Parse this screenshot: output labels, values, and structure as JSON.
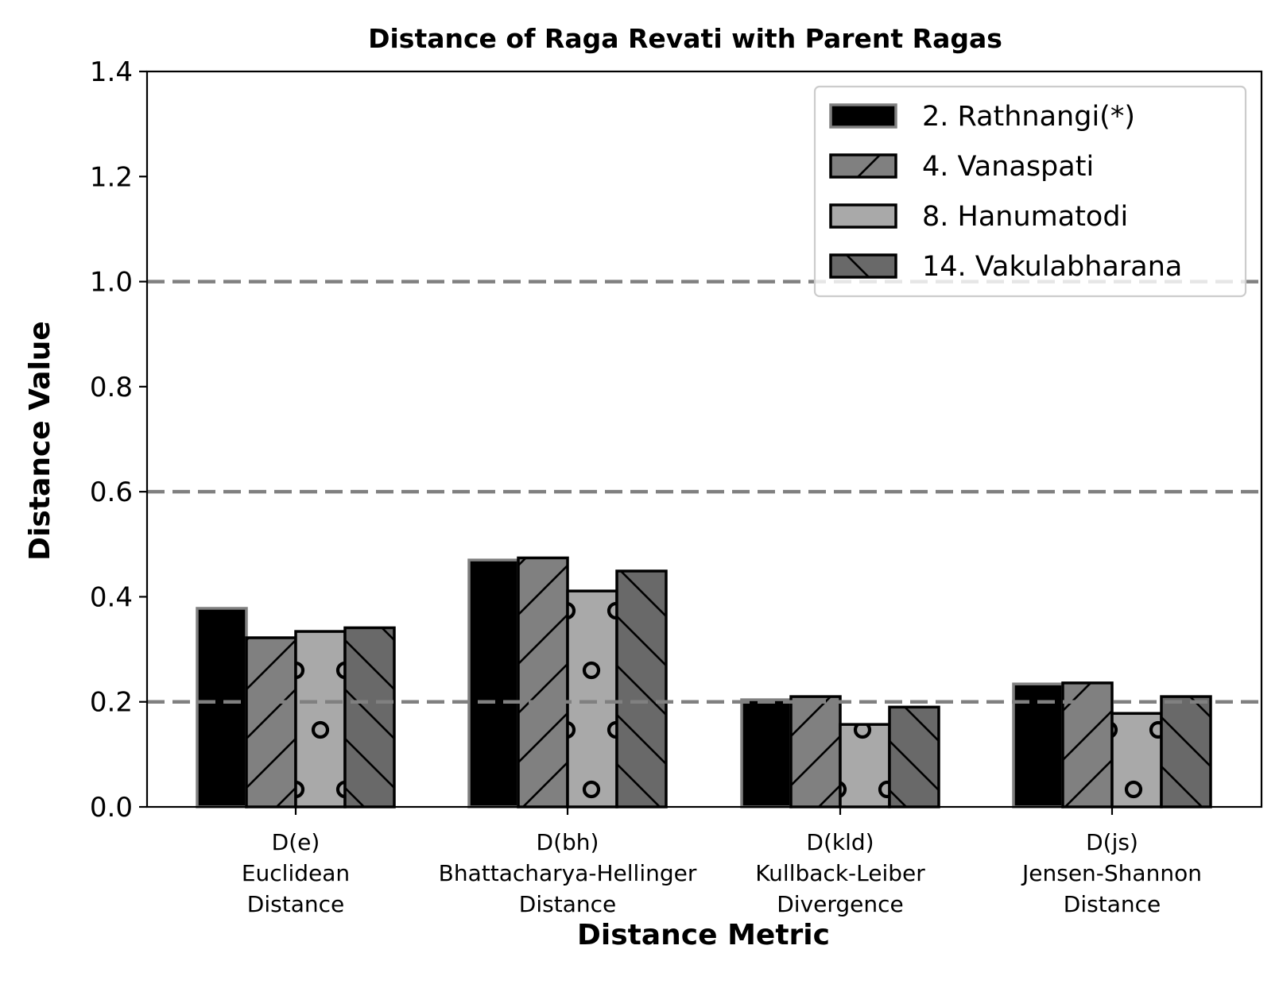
{
  "chart_data": {
    "type": "bar",
    "title": "Distance of Raga Revati with Parent Ragas",
    "xlabel": "Distance Metric",
    "ylabel": "Distance Value",
    "ylim": [
      0,
      1.4
    ],
    "yticks": [
      "0.0",
      "0.2",
      "0.4",
      "0.6",
      "0.8",
      "1.0",
      "1.2",
      "1.4"
    ],
    "categories": [
      [
        "D(e)",
        "Euclidean",
        "Distance"
      ],
      [
        "D(bh)",
        "Bhattacharya-Hellinger",
        "Distance"
      ],
      [
        "D(kld)",
        "Kullback-Leiber",
        "Divergence"
      ],
      [
        "D(js)",
        "Jensen-Shannon",
        "Distance"
      ]
    ],
    "reference_lines": [
      0.2,
      0.6,
      1.0
    ],
    "legend_position": "top-right",
    "grid": false,
    "series": [
      {
        "name": "2. Rathnangi(*)",
        "values": [
          0.378,
          0.47,
          0.204,
          0.234
        ],
        "fill": "#000000",
        "edge": "#808080",
        "hatch": "none"
      },
      {
        "name": "4. Vanaspati",
        "values": [
          0.322,
          0.474,
          0.21,
          0.236
        ],
        "fill": "#808080",
        "edge": "#000000",
        "hatch": "slash"
      },
      {
        "name": "8. Hanumatodi",
        "values": [
          0.334,
          0.411,
          0.157,
          0.178
        ],
        "fill": "#a9a9a9",
        "edge": "#000000",
        "hatch": "circles"
      },
      {
        "name": "14. Vakulabharana",
        "values": [
          0.341,
          0.449,
          0.19,
          0.21
        ],
        "fill": "#696969",
        "edge": "#000000",
        "hatch": "backslash"
      }
    ]
  }
}
